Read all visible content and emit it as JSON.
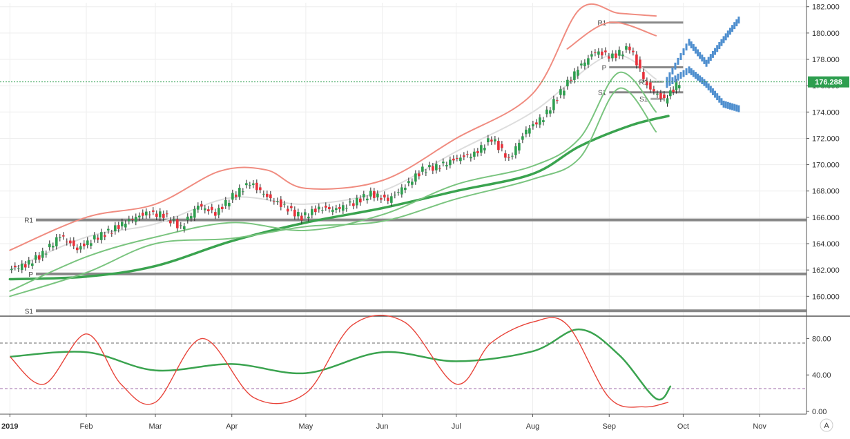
{
  "chart_data": [
    {
      "type": "candlestick",
      "price_axis": {
        "ylim": [
          158.6,
          182.3
        ],
        "ticks": [
          "182.000",
          "180.000",
          "178.000",
          "176.000",
          "174.000",
          "172.000",
          "170.000",
          "168.000",
          "166.000",
          "164.000",
          "162.000",
          "160.000"
        ]
      },
      "time_axis": {
        "labels": [
          "2019",
          "Feb",
          "Mar",
          "Apr",
          "May",
          "Jun",
          "Jul",
          "Aug",
          "Sep",
          "Oct",
          "Nov"
        ]
      },
      "last_price": {
        "value": 176.288,
        "label": "176.288",
        "color": "#2e9e4f"
      },
      "ohlc_dates": [
        "2019-01-01",
        "2019-01-08",
        "2019-01-15",
        "2019-01-22",
        "2019-01-29",
        "2019-02-05",
        "2019-02-12",
        "2019-02-19",
        "2019-02-26",
        "2019-03-05",
        "2019-03-12",
        "2019-03-19",
        "2019-03-26",
        "2019-04-02",
        "2019-04-09",
        "2019-04-16",
        "2019-04-23",
        "2019-04-30",
        "2019-05-07",
        "2019-05-14",
        "2019-05-21",
        "2019-05-28",
        "2019-06-04",
        "2019-06-11",
        "2019-06-18",
        "2019-06-25",
        "2019-07-02",
        "2019-07-09",
        "2019-07-16",
        "2019-07-23",
        "2019-07-30",
        "2019-08-06",
        "2019-08-13",
        "2019-08-20",
        "2019-08-27",
        "2019-09-03",
        "2019-09-10",
        "2019-09-17",
        "2019-09-24"
      ],
      "ohlc_close": [
        162.4,
        163.2,
        164.6,
        163.6,
        164.4,
        165.0,
        165.8,
        166.3,
        166.2,
        165.2,
        166.9,
        166.3,
        167.6,
        168.6,
        167.6,
        166.8,
        166.0,
        166.7,
        166.6,
        167.1,
        167.8,
        167.3,
        168.4,
        169.6,
        169.9,
        170.5,
        170.8,
        172.0,
        170.4,
        172.6,
        173.6,
        175.5,
        177.3,
        178.6,
        178.2,
        178.9,
        176.0,
        174.9,
        176.3
      ],
      "ohlc_open": [
        162.0,
        162.4,
        163.2,
        164.6,
        163.6,
        164.4,
        165.0,
        165.8,
        166.3,
        166.2,
        165.2,
        166.9,
        166.3,
        167.6,
        168.6,
        167.6,
        166.8,
        166.0,
        166.7,
        166.6,
        167.1,
        167.8,
        167.3,
        168.4,
        169.6,
        169.9,
        170.5,
        170.8,
        172.0,
        170.4,
        172.6,
        173.6,
        175.5,
        177.3,
        178.6,
        178.2,
        178.9,
        176.0,
        174.9
      ],
      "series": [
        {
          "name": "",
          "color": "#f08c80",
          "x": [
            "2019-01-01",
            "2019-02-01",
            "2019-03-01",
            "2019-03-27",
            "2019-04-15",
            "2019-05-01",
            "2019-06-01",
            "2019-07-01",
            "2019-08-01",
            "2019-08-20",
            "2019-09-05",
            "2019-09-20"
          ],
          "values": [
            163.5,
            166.0,
            167.0,
            169.5,
            169.6,
            168.2,
            168.8,
            172.0,
            175.4,
            181.8,
            181.5,
            181.3
          ]
        },
        {
          "name": "",
          "color": "#f08c80",
          "x": [
            "2019-08-15",
            "2019-09-01",
            "2019-09-20"
          ],
          "values": [
            178.8,
            180.8,
            179.8
          ]
        },
        {
          "name": "",
          "color": "#3aa34f",
          "x": [
            "2019-01-01",
            "2019-02-01",
            "2019-03-01",
            "2019-04-01",
            "2019-05-01",
            "2019-06-01",
            "2019-07-01",
            "2019-08-01",
            "2019-08-20",
            "2019-09-10",
            "2019-09-25"
          ],
          "values": [
            161.3,
            161.5,
            162.3,
            164.2,
            165.6,
            166.7,
            168.0,
            169.3,
            171.4,
            173.0,
            173.7
          ]
        },
        {
          "name": "",
          "color": "#dddddd",
          "x": [
            "2019-01-01",
            "2019-02-01",
            "2019-03-01",
            "2019-04-01",
            "2019-05-01",
            "2019-06-01",
            "2019-07-01",
            "2019-08-01",
            "2019-09-01",
            "2019-09-20"
          ],
          "values": [
            162.0,
            164.5,
            165.5,
            167.5,
            167.0,
            168.0,
            171.0,
            174.0,
            178.3,
            176.5
          ]
        },
        {
          "name": "",
          "color": "#7ac47f",
          "x": [
            "2019-01-01",
            "2019-02-01",
            "2019-03-01",
            "2019-04-01",
            "2019-05-01",
            "2019-06-01",
            "2019-07-01",
            "2019-08-01",
            "2019-08-20",
            "2019-09-05",
            "2019-09-20"
          ],
          "values": [
            160.4,
            163.0,
            164.5,
            165.6,
            165.0,
            166.2,
            168.5,
            169.9,
            172.0,
            177.0,
            174.0
          ]
        },
        {
          "name": "",
          "color": "#7ac47f",
          "x": [
            "2019-01-01",
            "2019-02-01",
            "2019-03-01",
            "2019-04-01",
            "2019-05-01",
            "2019-06-01",
            "2019-07-01",
            "2019-08-01",
            "2019-08-20",
            "2019-09-05",
            "2019-09-20"
          ],
          "values": [
            160.0,
            161.8,
            164.0,
            164.4,
            165.3,
            165.7,
            167.4,
            168.9,
            170.5,
            175.8,
            172.5
          ]
        }
      ],
      "pivot_lines": [
        {
          "label": "R1",
          "value": 165.8,
          "from": "2019-01-01",
          "to": "2019-11-01",
          "color": "#888888"
        },
        {
          "label": "P",
          "value": 161.7,
          "from": "2019-01-01",
          "to": "2019-11-01",
          "color": "#888888"
        },
        {
          "label": "S1",
          "value": 158.9,
          "from": "2019-01-01",
          "to": "2019-11-01",
          "color": "#888888"
        },
        {
          "label": "R1",
          "value": 180.8,
          "from": "2019-09-01",
          "to": "2019-10-01",
          "color": "#888888"
        },
        {
          "label": "P",
          "value": 177.4,
          "from": "2019-09-01",
          "to": "2019-10-01",
          "color": "#888888"
        },
        {
          "label": "S1",
          "value": 175.5,
          "from": "2019-09-01",
          "to": "2019-10-01",
          "color": "#888888"
        },
        {
          "label": "R1",
          "value": 176.3,
          "from": "2019-09-15",
          "to": "2019-09-23",
          "color": "#aaaaaa"
        },
        {
          "label": "S1",
          "value": 175.0,
          "from": "2019-09-15",
          "to": "2019-09-23",
          "color": "#aaaaaa"
        }
      ],
      "projection": {
        "color": "#4f8fcf",
        "paths": [
          {
            "x": [
              "2019-09-24",
              "2019-10-03",
              "2019-10-10",
              "2019-10-17",
              "2019-10-24"
            ],
            "values": [
              176.4,
              179.3,
              177.7,
              179.5,
              181.2
            ]
          },
          {
            "x": [
              "2019-09-24",
              "2019-10-03",
              "2019-10-10",
              "2019-10-17",
              "2019-10-24"
            ],
            "values": [
              176.1,
              177.2,
              176.1,
              174.6,
              174.2
            ]
          }
        ]
      }
    },
    {
      "type": "line",
      "ylim": [
        -3,
        103
      ],
      "ticks": [
        "80.00",
        "40.00",
        "0.00"
      ],
      "hlines": [
        75,
        25
      ],
      "series": [
        {
          "name": "",
          "color": "#3aa34f",
          "x": [
            "2019-01-01",
            "2019-02-01",
            "2019-03-01",
            "2019-04-01",
            "2019-05-01",
            "2019-06-01",
            "2019-07-01",
            "2019-08-01",
            "2019-08-20",
            "2019-09-05",
            "2019-09-20",
            "2019-09-26"
          ],
          "values": [
            60,
            65,
            45,
            52,
            42,
            65,
            55,
            66,
            90,
            62,
            14,
            28
          ]
        },
        {
          "name": "",
          "color": "#e8443a",
          "x": [
            "2019-01-01",
            "2019-01-15",
            "2019-02-01",
            "2019-02-15",
            "2019-03-01",
            "2019-03-20",
            "2019-04-10",
            "2019-05-01",
            "2019-05-20",
            "2019-06-10",
            "2019-07-01",
            "2019-07-15",
            "2019-08-01",
            "2019-08-15",
            "2019-09-01",
            "2019-09-15",
            "2019-09-25"
          ],
          "values": [
            60,
            30,
            85,
            30,
            10,
            80,
            15,
            20,
            95,
            98,
            30,
            75,
            98,
            95,
            15,
            5,
            10
          ]
        }
      ]
    }
  ]
}
